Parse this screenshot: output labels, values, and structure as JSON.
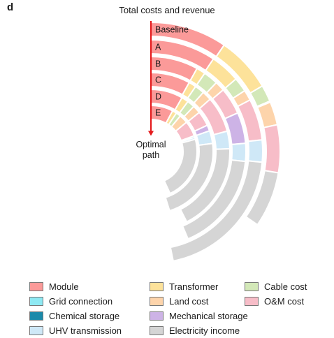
{
  "panel_label": "d",
  "chart_data": {
    "type": "radial-stacked-bar",
    "title": "Total costs and revenue",
    "direction_label": "Optimal path",
    "ring_labels": [
      "Baseline",
      "A",
      "B",
      "C",
      "D",
      "E"
    ],
    "legend": [
      {
        "name": "Module",
        "color": "#fb9a99"
      },
      {
        "name": "Transformer",
        "color": "#fde29a"
      },
      {
        "name": "Cable cost",
        "color": "#d3e8b8"
      },
      {
        "name": "Grid connection",
        "color": "#8ee9f3"
      },
      {
        "name": "Land cost",
        "color": "#fdd4ab"
      },
      {
        "name": "O&M cost",
        "color": "#f7bdc8"
      },
      {
        "name": "Chemical storage",
        "color": "#1a8aaa"
      },
      {
        "name": "Mechanical storage",
        "color": "#cdb3e6"
      },
      {
        "name": "UHV transmission",
        "color": "#cfe8f7"
      },
      {
        "name": "Electricity income",
        "color": "#d5d5d5"
      }
    ],
    "rings": [
      {
        "label": "Baseline",
        "segments": [
          {
            "name": "Module",
            "value": 34.5
          },
          {
            "name": "Transformer",
            "value": 25.0
          },
          {
            "name": "Cable cost",
            "value": 7.5
          },
          {
            "name": "Grid connection",
            "value": 0.5
          },
          {
            "name": "Land cost",
            "value": 10.5
          },
          {
            "name": "O&M cost",
            "value": 21.5
          },
          {
            "name": "Electricity income",
            "value": 25.0
          }
        ]
      },
      {
        "label": "A",
        "segments": [
          {
            "name": "Module",
            "value": 34.0
          },
          {
            "name": "Transformer",
            "value": 15.5
          },
          {
            "name": "Cable cost",
            "value": 7.5
          },
          {
            "name": "Land cost",
            "value": 5.5
          },
          {
            "name": "O&M cost",
            "value": 21.5
          },
          {
            "name": "UHV transmission",
            "value": 11.5
          },
          {
            "name": "Electricity income",
            "value": 73.0
          }
        ]
      },
      {
        "label": "B",
        "segments": [
          {
            "name": "Module",
            "value": 29.0
          },
          {
            "name": "Transformer",
            "value": 5.5
          },
          {
            "name": "Cable cost",
            "value": 9.0
          },
          {
            "name": "Land cost",
            "value": 6.0
          },
          {
            "name": "O&M cost",
            "value": 16.5
          },
          {
            "name": "Mechanical storage",
            "value": 19.0
          },
          {
            "name": "UHV transmission",
            "value": 11.0
          },
          {
            "name": "Electricity income",
            "value": 61.0
          }
        ]
      },
      {
        "label": "C",
        "segments": [
          {
            "name": "Module",
            "value": 29.0
          },
          {
            "name": "Transformer",
            "value": 5.5
          },
          {
            "name": "Cable cost",
            "value": 7.0
          },
          {
            "name": "Land cost",
            "value": 7.0
          },
          {
            "name": "O&M cost",
            "value": 26.5
          },
          {
            "name": "UHV transmission",
            "value": 13.0
          },
          {
            "name": "Electricity income",
            "value": 65.0
          }
        ]
      },
      {
        "label": "D",
        "segments": [
          {
            "name": "Module",
            "value": 30.0
          },
          {
            "name": "Transformer",
            "value": 6.5
          },
          {
            "name": "Cable cost",
            "value": 7.0
          },
          {
            "name": "Land cost",
            "value": 7.5
          },
          {
            "name": "O&M cost",
            "value": 14.0
          },
          {
            "name": "Mechanical storage",
            "value": 5.5
          },
          {
            "name": "UHV transmission",
            "value": 12.0
          },
          {
            "name": "Electricity income",
            "value": 80.0
          }
        ]
      },
      {
        "label": "E",
        "segments": [
          {
            "name": "Module",
            "value": 28.0
          },
          {
            "name": "Transformer",
            "value": 5.5
          },
          {
            "name": "Cable cost",
            "value": 6.0
          },
          {
            "name": "Land cost",
            "value": 11.0
          },
          {
            "name": "O&M cost",
            "value": 19.5
          },
          {
            "name": "Chemical storage",
            "value": 2.0
          },
          {
            "name": "UHV transmission",
            "value": 2.5
          },
          {
            "name": "Electricity income",
            "value": 81.0
          }
        ]
      }
    ]
  }
}
